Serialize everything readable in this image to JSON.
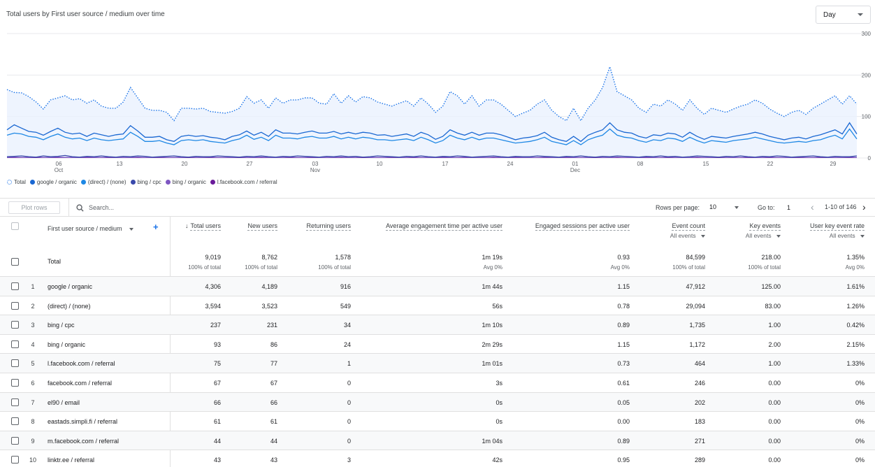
{
  "chart": {
    "title": "Total users by First user source / medium over time",
    "granularity": "Day",
    "y_ticks": [
      "300",
      "200",
      "100",
      "0"
    ],
    "x_ticks": [
      {
        "day": "06",
        "month": "Oct"
      },
      {
        "day": "13",
        "month": ""
      },
      {
        "day": "20",
        "month": ""
      },
      {
        "day": "27",
        "month": ""
      },
      {
        "day": "03",
        "month": "Nov"
      },
      {
        "day": "10",
        "month": ""
      },
      {
        "day": "17",
        "month": ""
      },
      {
        "day": "24",
        "month": ""
      },
      {
        "day": "01",
        "month": "Dec"
      },
      {
        "day": "08",
        "month": ""
      },
      {
        "day": "15",
        "month": ""
      },
      {
        "day": "22",
        "month": ""
      },
      {
        "day": "29",
        "month": ""
      }
    ],
    "legend": [
      {
        "label": "Total",
        "color": "#1a73e8",
        "style": "dotted"
      },
      {
        "label": "google / organic",
        "color": "#1967d2",
        "style": "solid"
      },
      {
        "label": "(direct) / (none)",
        "color": "#1e88e5",
        "style": "solid"
      },
      {
        "label": "bing / cpc",
        "color": "#3949ab",
        "style": "solid"
      },
      {
        "label": "bing / organic",
        "color": "#7e57c2",
        "style": "solid"
      },
      {
        "label": "l.facebook.com / referral",
        "color": "#6a1b9a",
        "style": "solid"
      }
    ]
  },
  "chart_data": {
    "type": "line",
    "ylim": [
      0,
      300
    ],
    "x_range": [
      "Oct 1",
      "Dec 31"
    ],
    "series": [
      {
        "name": "Total",
        "values": [
          165,
          158,
          157,
          148,
          135,
          118,
          140,
          145,
          150,
          140,
          143,
          132,
          140,
          125,
          120,
          120,
          135,
          170,
          145,
          120,
          115,
          115,
          110,
          90,
          120,
          120,
          118,
          120,
          112,
          110,
          108,
          112,
          120,
          148,
          132,
          140,
          120,
          145,
          132,
          140,
          140,
          145,
          145,
          132,
          130,
          155,
          132,
          150,
          135,
          148,
          145,
          135,
          130,
          125,
          132,
          138,
          125,
          145,
          130,
          110,
          125,
          160,
          150,
          130,
          150,
          125,
          140,
          140,
          130,
          115,
          100,
          108,
          115,
          130,
          140,
          115,
          100,
          90,
          120,
          90,
          120,
          140,
          170,
          220,
          160,
          150,
          140,
          120,
          110,
          130,
          125,
          140,
          130,
          115,
          140,
          120,
          105,
          120,
          115,
          110,
          118,
          125,
          130,
          140,
          132,
          118,
          108,
          100,
          110,
          115,
          105,
          120,
          130,
          140,
          150,
          130,
          150,
          130
        ]
      },
      {
        "name": "google / organic",
        "values": [
          68,
          80,
          72,
          64,
          62,
          55,
          64,
          72,
          62,
          58,
          60,
          52,
          60,
          56,
          52,
          56,
          58,
          78,
          65,
          50,
          50,
          52,
          44,
          40,
          52,
          55,
          52,
          54,
          50,
          48,
          44,
          52,
          56,
          65,
          55,
          62,
          52,
          68,
          60,
          60,
          58,
          62,
          65,
          60,
          60,
          64,
          58,
          62,
          58,
          62,
          60,
          55,
          56,
          52,
          55,
          58,
          52,
          62,
          56,
          45,
          52,
          68,
          60,
          55,
          62,
          55,
          60,
          60,
          56,
          50,
          44,
          48,
          50,
          54,
          62,
          50,
          44,
          40,
          52,
          40,
          55,
          62,
          68,
          85,
          68,
          62,
          60,
          52,
          48,
          56,
          54,
          60,
          58,
          50,
          62,
          52,
          45,
          52,
          50,
          48,
          52,
          55,
          58,
          62,
          58,
          52,
          48,
          44,
          48,
          50,
          46,
          52,
          56,
          62,
          68,
          58,
          85,
          58
        ]
      },
      {
        "name": "(direct) / (none)",
        "values": [
          55,
          60,
          58,
          52,
          50,
          44,
          52,
          58,
          50,
          46,
          48,
          42,
          48,
          44,
          42,
          44,
          46,
          62,
          52,
          40,
          40,
          42,
          36,
          32,
          42,
          44,
          42,
          44,
          40,
          38,
          36,
          42,
          46,
          55,
          45,
          50,
          42,
          55,
          48,
          48,
          46,
          50,
          52,
          48,
          48,
          52,
          46,
          50,
          46,
          50,
          48,
          44,
          44,
          42,
          44,
          46,
          42,
          50,
          44,
          36,
          42,
          55,
          48,
          44,
          50,
          44,
          48,
          48,
          44,
          40,
          36,
          38,
          40,
          44,
          50,
          40,
          36,
          32,
          42,
          32,
          44,
          50,
          55,
          70,
          55,
          50,
          48,
          42,
          38,
          44,
          42,
          48,
          46,
          40,
          50,
          42,
          36,
          42,
          40,
          38,
          42,
          44,
          46,
          50,
          46,
          42,
          38,
          36,
          38,
          40,
          38,
          42,
          44,
          50,
          55,
          46,
          70,
          46
        ]
      },
      {
        "name": "bing / cpc",
        "values": [
          3,
          4,
          5,
          3,
          2,
          5,
          3,
          4,
          6,
          3,
          2,
          4,
          3,
          5,
          3,
          2,
          4,
          3,
          5,
          4,
          2,
          3,
          4,
          5,
          3,
          2,
          4,
          3,
          3,
          5,
          4,
          3,
          2,
          4,
          3,
          5,
          3,
          2,
          4,
          3,
          5,
          4,
          3,
          2,
          4,
          3,
          5,
          3,
          4,
          2,
          3,
          5,
          4,
          3,
          2,
          4,
          3,
          5,
          3,
          2,
          4,
          3,
          5,
          4,
          2,
          3,
          4,
          5,
          3,
          2,
          4,
          3,
          3,
          5,
          4,
          3,
          2,
          4,
          3,
          5,
          3,
          2,
          4,
          3,
          5,
          4,
          3,
          2,
          4,
          3,
          5,
          3,
          4,
          2,
          3,
          5,
          4,
          3,
          2,
          4,
          3,
          5,
          3,
          2,
          4,
          3,
          5,
          4,
          2,
          3,
          4,
          5,
          3,
          2,
          4,
          3,
          3,
          5
        ]
      },
      {
        "name": "bing / organic",
        "values": [
          1,
          2,
          1,
          1,
          2,
          1,
          1,
          2,
          1,
          1,
          1,
          2,
          1,
          1,
          2,
          1,
          1,
          1,
          2,
          1,
          1,
          2,
          1,
          1,
          1,
          2,
          1,
          1,
          2,
          1,
          1,
          1,
          2,
          1,
          1,
          2,
          1,
          1,
          1,
          2,
          1,
          1,
          2,
          1,
          1,
          1,
          2,
          1,
          1,
          2,
          1,
          1,
          1,
          2,
          1,
          1,
          2,
          1,
          1,
          1,
          2,
          1,
          1,
          2,
          1,
          1,
          1,
          2,
          1,
          1,
          2,
          1,
          1,
          1,
          2,
          1,
          1,
          2,
          1,
          1,
          1,
          2,
          1,
          1,
          2,
          1,
          1,
          1,
          2,
          1,
          1,
          2,
          1,
          1,
          1,
          2,
          1,
          1,
          2,
          1,
          1,
          1,
          2,
          1,
          1,
          2,
          1,
          1,
          1,
          2,
          1,
          1,
          2,
          1,
          1,
          1,
          2,
          1
        ]
      },
      {
        "name": "l.facebook.com / referral",
        "values": [
          1,
          1,
          1,
          1,
          1,
          1,
          1,
          1,
          1,
          1,
          1,
          1,
          1,
          1,
          1,
          1,
          1,
          1,
          1,
          1,
          1,
          1,
          1,
          1,
          1,
          1,
          1,
          1,
          1,
          1,
          1,
          1,
          1,
          1,
          1,
          1,
          1,
          1,
          1,
          1,
          1,
          1,
          1,
          1,
          1,
          1,
          1,
          1,
          1,
          1,
          1,
          1,
          1,
          1,
          1,
          1,
          1,
          1,
          1,
          1,
          1,
          1,
          1,
          1,
          1,
          1,
          1,
          1,
          1,
          1,
          1,
          1,
          1,
          1,
          1,
          1,
          1,
          1,
          1,
          1,
          1,
          1,
          1,
          1,
          1,
          1,
          1,
          1,
          1,
          1,
          1,
          1,
          1,
          1,
          1,
          1,
          1,
          1,
          1,
          1,
          1,
          1,
          1,
          1,
          1,
          1,
          1,
          1,
          1,
          1,
          1,
          1,
          1,
          1,
          1,
          1,
          1,
          1
        ]
      }
    ]
  },
  "toolbar": {
    "plot_rows": "Plot rows",
    "search_placeholder": "Search...",
    "rows_per_page_label": "Rows per page:",
    "rows_per_page": "10",
    "goto_label": "Go to:",
    "goto_value": "1",
    "range": "1-10 of 146"
  },
  "table": {
    "dimension_header": "First user source / medium",
    "columns": [
      {
        "label": "Total users",
        "sorted": true,
        "sub": ""
      },
      {
        "label": "New users",
        "sub": ""
      },
      {
        "label": "Returning users",
        "sub": ""
      },
      {
        "label": "Average engagement time per active user",
        "sub": ""
      },
      {
        "label": "Engaged sessions per active user",
        "sub": ""
      },
      {
        "label": "Event count",
        "sub": "All events"
      },
      {
        "label": "Key events",
        "sub": "All events"
      },
      {
        "label": "User key event rate",
        "sub": "All events"
      }
    ],
    "total": {
      "label": "Total",
      "values": [
        "9,019",
        "8,762",
        "1,578",
        "1m 19s",
        "0.93",
        "84,599",
        "218.00",
        "1.35%"
      ],
      "subs": [
        "100% of total",
        "100% of total",
        "100% of total",
        "Avg 0%",
        "Avg 0%",
        "100% of total",
        "100% of total",
        "Avg 0%"
      ]
    },
    "rows": [
      {
        "idx": "1",
        "dim": "google / organic",
        "values": [
          "4,306",
          "4,189",
          "916",
          "1m 44s",
          "1.15",
          "47,912",
          "125.00",
          "1.61%"
        ]
      },
      {
        "idx": "2",
        "dim": "(direct) / (none)",
        "values": [
          "3,594",
          "3,523",
          "549",
          "56s",
          "0.78",
          "29,094",
          "83.00",
          "1.26%"
        ]
      },
      {
        "idx": "3",
        "dim": "bing / cpc",
        "values": [
          "237",
          "231",
          "34",
          "1m 10s",
          "0.89",
          "1,735",
          "1.00",
          "0.42%"
        ]
      },
      {
        "idx": "4",
        "dim": "bing / organic",
        "values": [
          "93",
          "86",
          "24",
          "2m 29s",
          "1.15",
          "1,172",
          "2.00",
          "2.15%"
        ]
      },
      {
        "idx": "5",
        "dim": "l.facebook.com / referral",
        "values": [
          "75",
          "77",
          "1",
          "1m 01s",
          "0.73",
          "464",
          "1.00",
          "1.33%"
        ]
      },
      {
        "idx": "6",
        "dim": "facebook.com / referral",
        "values": [
          "67",
          "67",
          "0",
          "3s",
          "0.61",
          "246",
          "0.00",
          "0%"
        ]
      },
      {
        "idx": "7",
        "dim": "el90 / email",
        "values": [
          "66",
          "66",
          "0",
          "0s",
          "0.05",
          "202",
          "0.00",
          "0%"
        ]
      },
      {
        "idx": "8",
        "dim": "eastads.simpli.fi / referral",
        "values": [
          "61",
          "61",
          "0",
          "0s",
          "0.00",
          "183",
          "0.00",
          "0%"
        ]
      },
      {
        "idx": "9",
        "dim": "m.facebook.com / referral",
        "values": [
          "44",
          "44",
          "0",
          "1m 04s",
          "0.89",
          "271",
          "0.00",
          "0%"
        ]
      },
      {
        "idx": "10",
        "dim": "linktr.ee / referral",
        "values": [
          "43",
          "43",
          "3",
          "42s",
          "0.95",
          "289",
          "0.00",
          "0%"
        ]
      }
    ]
  }
}
